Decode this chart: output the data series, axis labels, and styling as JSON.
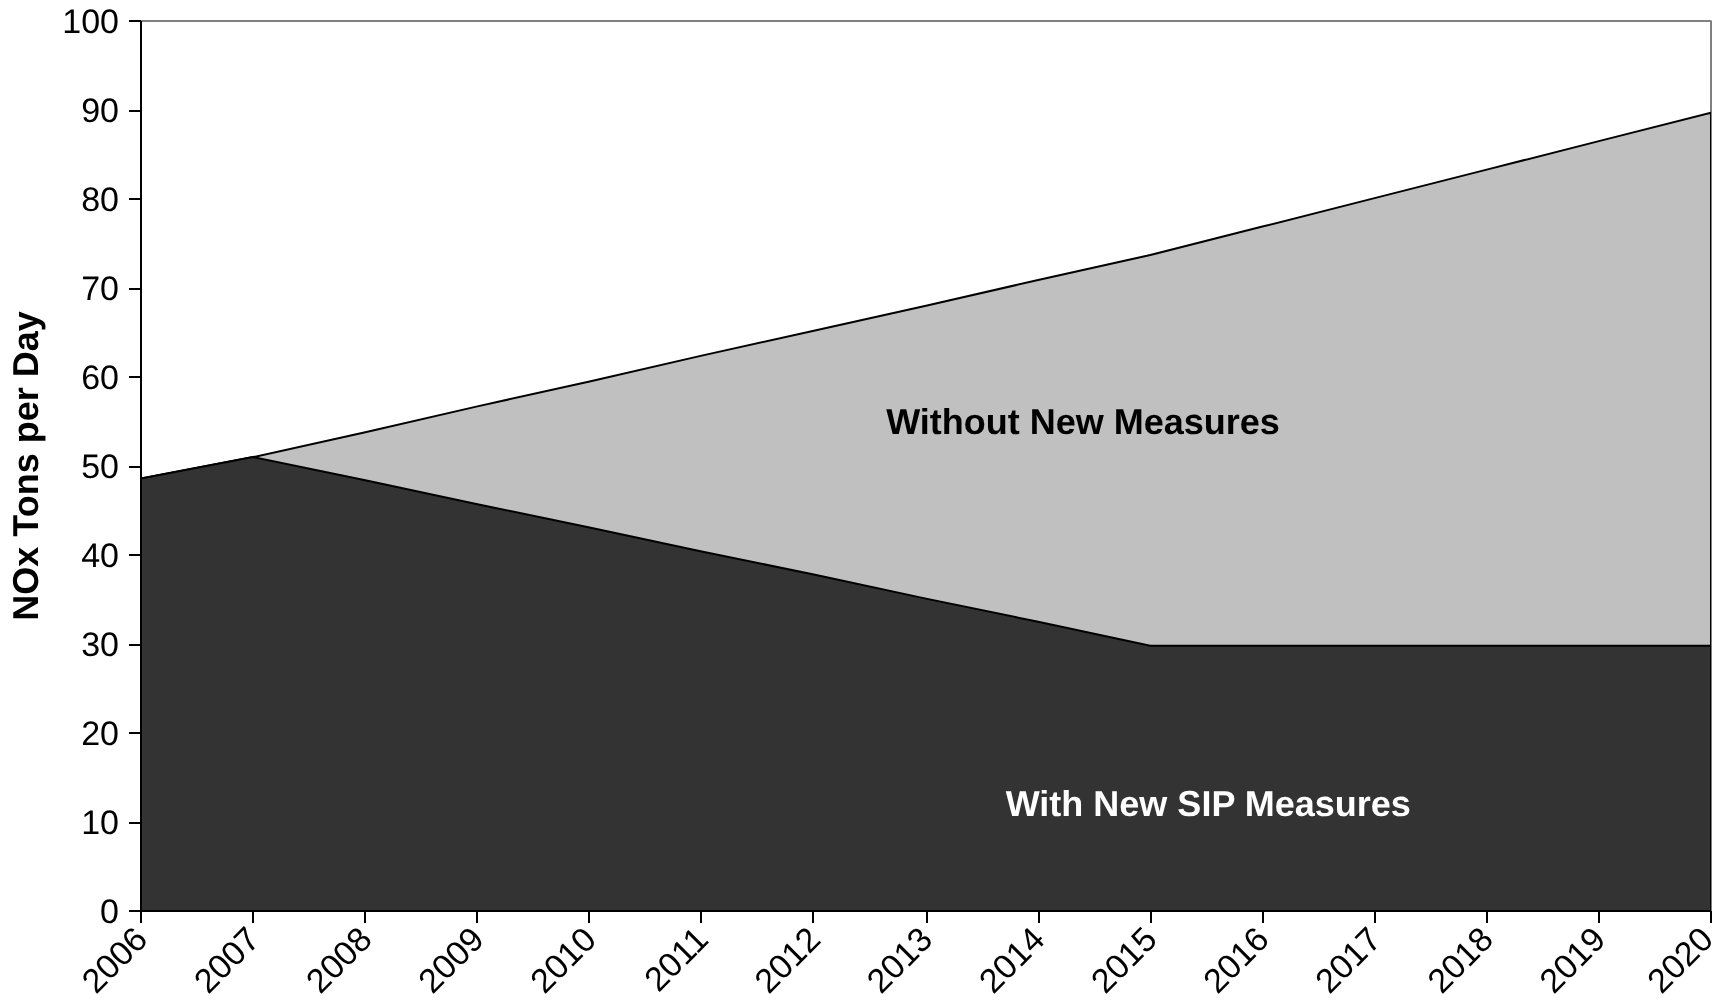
{
  "chart_data": {
    "type": "area",
    "ylabel": "NOx Tons per Day",
    "x": [
      2006,
      2007,
      2008,
      2009,
      2010,
      2011,
      2012,
      2013,
      2014,
      2015,
      2016,
      2017,
      2018,
      2019,
      2020
    ],
    "series": [
      {
        "name": "Without New Measures",
        "color": "#c0c0c0",
        "values": [
          48.6,
          51.0,
          53.8,
          56.7,
          59.5,
          62.4,
          65.2,
          68.0,
          70.9,
          73.7,
          76.9,
          80.1,
          83.3,
          86.5,
          89.7
        ]
      },
      {
        "name": "With New SIP Measures",
        "color": "#333333",
        "values": [
          48.6,
          51.0,
          48.4,
          45.7,
          43.1,
          40.4,
          37.8,
          35.1,
          32.5,
          29.8,
          29.8,
          29.8,
          29.8,
          29.8,
          29.8
        ]
      }
    ],
    "xlim": [
      2006,
      2020
    ],
    "xticks": [
      2006,
      2007,
      2008,
      2009,
      2010,
      2011,
      2012,
      2013,
      2014,
      2015,
      2016,
      2017,
      2018,
      2019,
      2020
    ],
    "ylim": [
      0,
      100
    ],
    "yticks": [
      0,
      10,
      20,
      30,
      40,
      50,
      60,
      70,
      80,
      90,
      100
    ],
    "grid": false
  }
}
